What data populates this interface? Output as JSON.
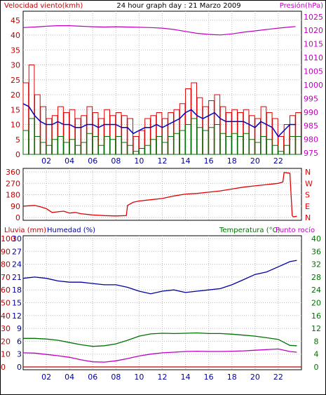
{
  "colors": {
    "wind": "#e00000",
    "gust": "#e00000",
    "wind_avg": "#007000",
    "wind_max_line": "#0000c0",
    "pressure": "#c000c0",
    "direction": "#e00000",
    "rain": "#c00000",
    "humidity": "#0000a0",
    "temperature": "#007000",
    "dewpoint": "#c000c0",
    "axis_left": "#c00000",
    "axis_blue": "#0000a0",
    "axis_green": "#007000",
    "grid": "#b8b8b8",
    "frame": "#000000"
  },
  "x_ticks": [
    "02",
    "04",
    "06",
    "08",
    "10",
    "12",
    "14",
    "16",
    "18",
    "20",
    "22"
  ],
  "chart_data": [
    {
      "type": "line",
      "title": "24 hour graph day : 21 Marzo 2009",
      "left_label": "Velocidad viento(kmh)",
      "right_label": "Presión(hPa)",
      "yticks_left": [
        "0",
        "5",
        "10",
        "15",
        "20",
        "25",
        "30",
        "35",
        "40",
        "45"
      ],
      "yticks_right": [
        "975",
        "980",
        "985",
        "990",
        "995",
        "1000",
        "1005",
        "1010",
        "1015",
        "1020",
        "1025"
      ],
      "ylim": [
        0,
        48
      ],
      "y2lim": [
        974.5,
        1027
      ],
      "xlim": [
        0,
        24
      ],
      "series": [
        {
          "key": "gust",
          "x": [
            0,
            0.5,
            1,
            1.5,
            2,
            2.5,
            3,
            3.5,
            4,
            4.5,
            5,
            5.5,
            6,
            6.5,
            7,
            7.5,
            8,
            8.5,
            9,
            9.5,
            10,
            10.5,
            11,
            11.5,
            12,
            12.5,
            13,
            13.5,
            14,
            14.5,
            15,
            15.5,
            16,
            16.5,
            17,
            17.5,
            18,
            18.5,
            19,
            19.5,
            20,
            20.5,
            21,
            21.5,
            22,
            22.5,
            23,
            23.5
          ],
          "values": [
            24,
            30,
            20,
            16,
            12,
            13,
            16,
            14,
            15,
            12,
            13,
            16,
            14,
            12,
            15,
            13,
            14,
            13,
            12,
            6,
            8,
            12,
            13,
            14,
            12,
            14,
            15,
            17,
            22,
            24,
            19,
            16,
            18,
            20,
            16,
            14,
            15,
            14,
            15,
            13,
            12,
            16,
            14,
            12,
            6,
            10,
            13,
            14
          ]
        },
        {
          "key": "wind_avg",
          "x": [
            0,
            0.5,
            1,
            1.5,
            2,
            2.5,
            3,
            3.5,
            4,
            4.5,
            5,
            5.5,
            6,
            6.5,
            7,
            7.5,
            8,
            8.5,
            9,
            9.5,
            10,
            10.5,
            11,
            11.5,
            12,
            12.5,
            13,
            13.5,
            14,
            14.5,
            15,
            15.5,
            16,
            16.5,
            17,
            17.5,
            18,
            18.5,
            19,
            19.5,
            20,
            20.5,
            21,
            21.5,
            22,
            22.5,
            23,
            23.5
          ],
          "values": [
            8,
            12,
            6,
            4,
            3,
            5,
            6,
            4,
            5,
            3,
            4,
            7,
            6,
            3,
            6,
            5,
            6,
            4,
            3,
            1,
            2,
            3,
            5,
            6,
            4,
            6,
            7,
            8,
            10,
            12,
            9,
            8,
            9,
            10,
            7,
            6,
            7,
            6,
            7,
            5,
            4,
            6,
            5,
            3,
            1,
            3,
            6,
            6
          ]
        },
        {
          "key": "wind_max_line",
          "x": [
            0,
            0.5,
            1,
            1.5,
            2,
            2.5,
            3,
            3.5,
            4,
            4.5,
            5,
            5.5,
            6,
            6.5,
            7,
            7.5,
            8,
            8.5,
            9,
            9.5,
            10,
            10.5,
            11,
            11.5,
            12,
            12.5,
            13,
            13.5,
            14,
            14.5,
            15,
            15.5,
            16,
            16.5,
            17,
            17.5,
            18,
            18.5,
            19,
            19.5,
            20,
            20.5,
            21,
            21.5,
            22,
            22.5,
            23,
            23.5
          ],
          "values": [
            17,
            16,
            13,
            11,
            10,
            10,
            11,
            10,
            10,
            9,
            9,
            10,
            10,
            9,
            10,
            10,
            10,
            9,
            9,
            7,
            8,
            9,
            9,
            10,
            9,
            10,
            11,
            12,
            14,
            15,
            13,
            12,
            13,
            14,
            12,
            11,
            11,
            11,
            11,
            10,
            9,
            11,
            10,
            9,
            6,
            8,
            10,
            10
          ]
        },
        {
          "key": "pressure",
          "x": [
            0,
            1,
            2,
            3,
            4,
            5,
            6,
            7,
            8,
            9,
            10,
            11,
            12,
            13,
            14,
            15,
            16,
            17,
            18,
            19,
            20,
            21,
            22,
            23,
            23.5
          ],
          "values": [
            1021,
            1021.2,
            1021.5,
            1021.7,
            1021.7,
            1021.5,
            1021.3,
            1021.2,
            1021.3,
            1021.2,
            1021.1,
            1021,
            1020.8,
            1020.3,
            1019.6,
            1018.9,
            1018.5,
            1018.3,
            1018.7,
            1019.3,
            1019.8,
            1020.3,
            1020.8,
            1021.2,
            1021.4
          ]
        }
      ]
    },
    {
      "type": "line",
      "title": "",
      "yticks_left": [
        "0",
        "90",
        "180",
        "270",
        "360"
      ],
      "direction_labels": [
        "N",
        "W",
        "S",
        "E",
        "N"
      ],
      "ylim": [
        0,
        360
      ],
      "xlim": [
        0,
        24
      ],
      "series": [
        {
          "key": "direction",
          "x": [
            0,
            1,
            1.5,
            2,
            2.5,
            3,
            3.5,
            4,
            4.5,
            5,
            6,
            7,
            8,
            8.9,
            9,
            9.5,
            10,
            11,
            12,
            13,
            14,
            15,
            16,
            17,
            18,
            19,
            20,
            21,
            22,
            22.4,
            22.5,
            23,
            23.2,
            23.3,
            23.6
          ],
          "values": [
            90,
            95,
            85,
            70,
            40,
            45,
            50,
            35,
            40,
            30,
            20,
            15,
            12,
            15,
            95,
            120,
            130,
            140,
            150,
            170,
            185,
            190,
            200,
            210,
            225,
            240,
            250,
            260,
            270,
            280,
            355,
            350,
            15,
            5,
            10
          ]
        }
      ]
    },
    {
      "type": "line",
      "title": "",
      "left_label_1": "Lluvia (mm)",
      "left_label_2": "Humedad (%)",
      "right_label_1": "Temperatura (°C)",
      "right_label_2": "Punto rocío",
      "yticks_rain": [
        "0",
        "10",
        "20",
        "30",
        "40",
        "50",
        "60",
        "70",
        "80",
        "90",
        "100"
      ],
      "yticks_humidity": [
        "0",
        "3",
        "6",
        "9",
        "12",
        "15",
        "18",
        "21",
        "24",
        "27",
        "30"
      ],
      "yticks_right": [
        "0",
        "4",
        "8",
        "12",
        "16",
        "20",
        "24",
        "28",
        "32",
        "36",
        "40"
      ],
      "xlim": [
        0,
        24
      ],
      "series": [
        {
          "key": "rain",
          "x": [
            0,
            24
          ],
          "values": [
            0,
            0
          ],
          "unit": "mm"
        },
        {
          "key": "humidity",
          "x": [
            0,
            1,
            2,
            3,
            4,
            5,
            6,
            7,
            8,
            9,
            10,
            11,
            12,
            13,
            14,
            15,
            16,
            17,
            18,
            19,
            20,
            21,
            22,
            23,
            23.6
          ],
          "values": [
            69,
            70,
            69,
            67,
            66,
            66,
            65,
            64,
            64,
            62,
            59,
            57,
            59,
            60,
            58,
            59,
            60,
            61,
            64,
            68,
            72,
            74,
            78,
            82,
            83
          ]
        },
        {
          "key": "temperature",
          "x": [
            0,
            1,
            2,
            3,
            4,
            5,
            6,
            7,
            8,
            9,
            10,
            11,
            12,
            13,
            14,
            15,
            16,
            17,
            18,
            19,
            20,
            21,
            22,
            23,
            23.6
          ],
          "values": [
            8.9,
            8.9,
            8.7,
            8.3,
            7.6,
            6.9,
            6.4,
            6.6,
            7.2,
            8.3,
            9.6,
            10.3,
            10.5,
            10.4,
            10.5,
            10.6,
            10.4,
            10.4,
            10.2,
            9.9,
            9.6,
            9.1,
            8.6,
            6.7,
            6.6
          ]
        },
        {
          "key": "dewpoint",
          "x": [
            0,
            1,
            2,
            3,
            4,
            5,
            6,
            7,
            8,
            9,
            10,
            11,
            12,
            13,
            14,
            15,
            16,
            17,
            18,
            19,
            20,
            21,
            22,
            23,
            23.6
          ],
          "values": [
            4.4,
            4.3,
            3.9,
            3.5,
            3.0,
            2.2,
            1.6,
            1.5,
            1.9,
            2.6,
            3.4,
            4.0,
            4.4,
            4.6,
            4.8,
            4.9,
            4.8,
            4.8,
            4.9,
            5.0,
            5.2,
            5.4,
            5.6,
            4.8,
            4.6
          ]
        }
      ]
    }
  ]
}
